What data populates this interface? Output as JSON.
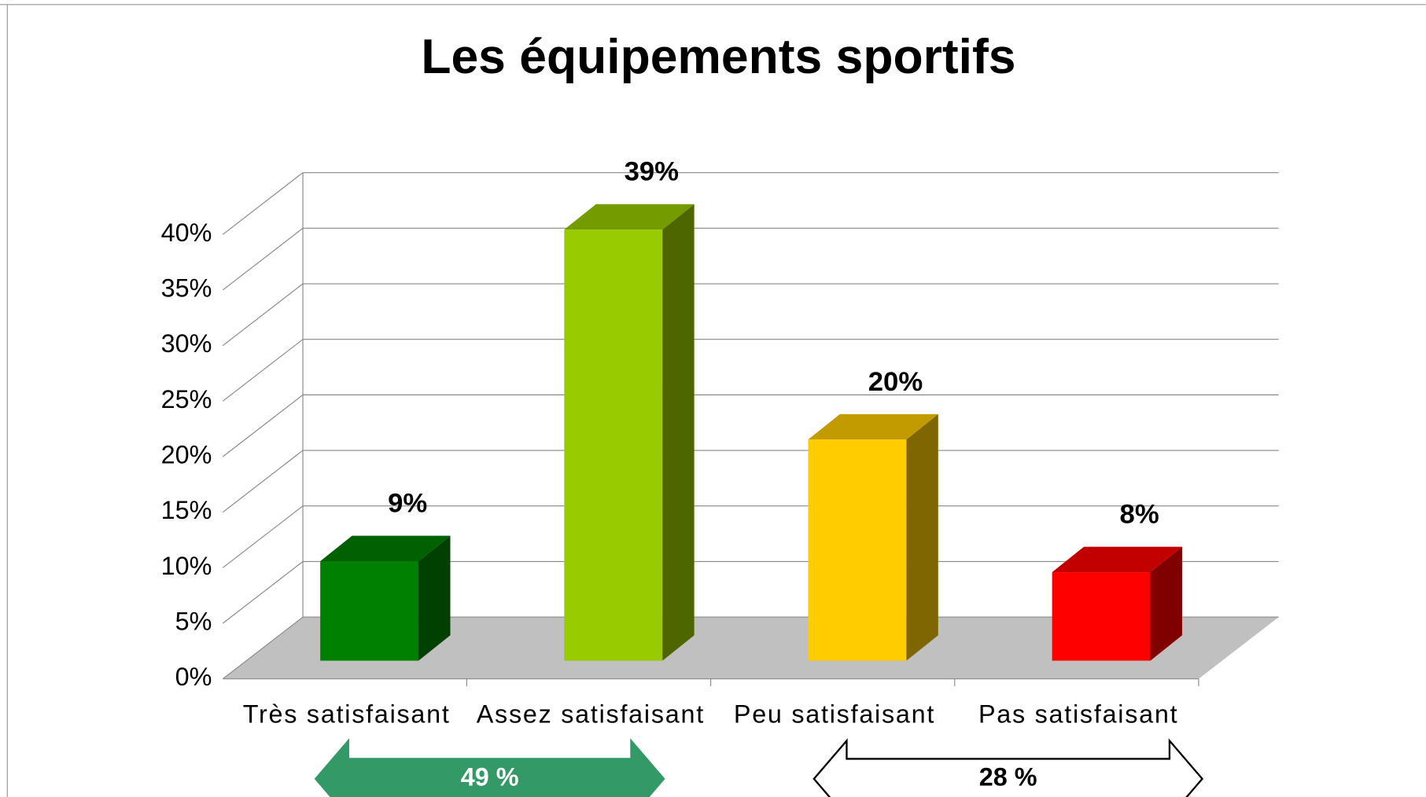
{
  "chart_data": {
    "type": "bar3d",
    "title": "Les équipements sportifs",
    "categories": [
      "Très satisfaisant",
      "Assez satisfaisant",
      "Peu satisfaisant",
      "Pas satisfaisant"
    ],
    "values": [
      9,
      39,
      20,
      8
    ],
    "value_labels": [
      "9%",
      "39%",
      "20%",
      "8%"
    ],
    "colors": [
      "#008000",
      "#99cc00",
      "#ffcc00",
      "#ff0000"
    ],
    "ylim": [
      0,
      40
    ],
    "yticks": [
      {
        "value": 0,
        "label": "0%"
      },
      {
        "value": 5,
        "label": "5%"
      },
      {
        "value": 10,
        "label": "10%"
      },
      {
        "value": 15,
        "label": "15%"
      },
      {
        "value": 20,
        "label": "20%"
      },
      {
        "value": 25,
        "label": "25%"
      },
      {
        "value": 30,
        "label": "30%"
      },
      {
        "value": 35,
        "label": "35%"
      },
      {
        "value": 40,
        "label": "40%"
      }
    ],
    "grid": true,
    "annotations": [
      {
        "text": "49 %",
        "color": "#339966"
      },
      {
        "text": "28 %",
        "color": "#ffffff"
      }
    ]
  }
}
